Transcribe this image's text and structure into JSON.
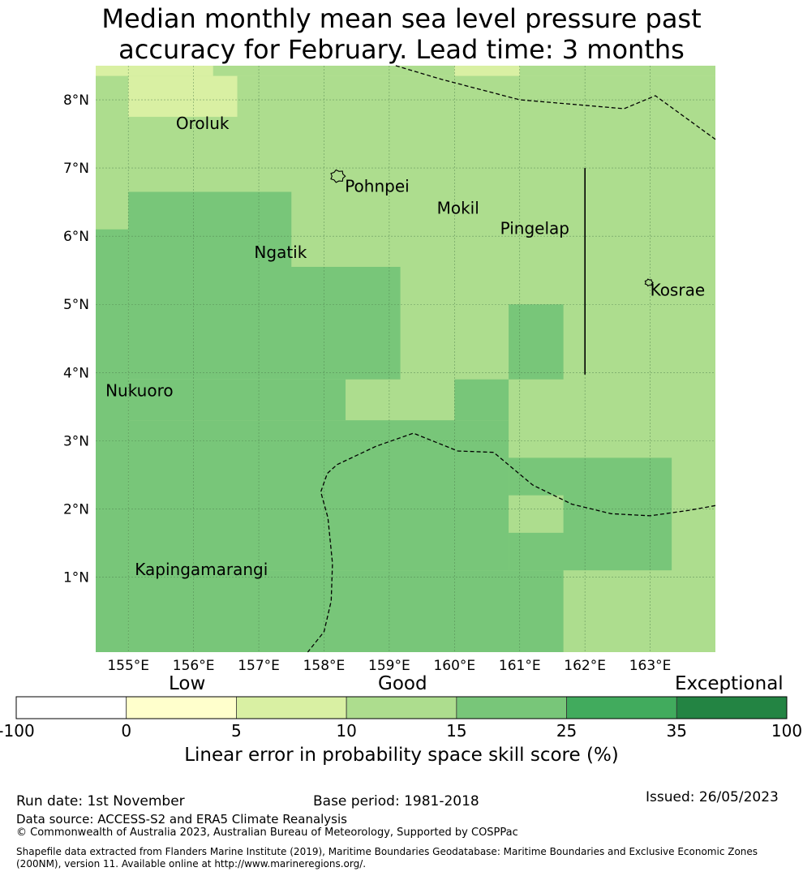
{
  "title_line1": "Median monthly mean sea level pressure past",
  "title_line2": "accuracy for February. Lead time: 3 months",
  "map": {
    "lon_range": [
      154.5,
      164.0
    ],
    "lat_range": [
      -0.1,
      8.5
    ],
    "lon_ticks": [
      155,
      156,
      157,
      158,
      159,
      160,
      161,
      162,
      163
    ],
    "lon_tick_labels": [
      "155°E",
      "156°E",
      "157°E",
      "158°E",
      "159°E",
      "160°E",
      "161°E",
      "162°E",
      "163°E"
    ],
    "lat_ticks": [
      1,
      2,
      3,
      4,
      5,
      6,
      7,
      8
    ],
    "lat_tick_labels": [
      "1°N",
      "2°N",
      "3°N",
      "4°N",
      "5°N",
      "6°N",
      "7°N",
      "8°N"
    ],
    "background_color": "#addd8e",
    "skill_cells": [
      {
        "lon": [
          154.5,
          164.0
        ],
        "lat": [
          8.35,
          8.5
        ],
        "color": "#d9f0a3"
      },
      {
        "lon": [
          156.3,
          160.0
        ],
        "lat": [
          8.35,
          8.5
        ],
        "color": "#addd8e"
      },
      {
        "lon": [
          161.0,
          164.0
        ],
        "lat": [
          8.35,
          8.5
        ],
        "color": "#addd8e"
      },
      {
        "lon": [
          155.0,
          156.67
        ],
        "lat": [
          7.75,
          8.35
        ],
        "color": "#d9f0a3"
      },
      {
        "lon": [
          154.5,
          155.0
        ],
        "lat": [
          -0.1,
          6.1
        ],
        "color": "#78c679"
      },
      {
        "lon": [
          155.0,
          157.5
        ],
        "lat": [
          5.5,
          6.65
        ],
        "color": "#78c679"
      },
      {
        "lon": [
          155.0,
          159.17
        ],
        "lat": [
          3.9,
          5.55
        ],
        "color": "#78c679"
      },
      {
        "lon": [
          155.0,
          158.33
        ],
        "lat": [
          3.3,
          3.9
        ],
        "color": "#78c679"
      },
      {
        "lon": [
          155.0,
          160.83
        ],
        "lat": [
          1.1,
          3.3
        ],
        "color": "#78c679"
      },
      {
        "lon": [
          160.0,
          160.83
        ],
        "lat": [
          3.3,
          3.9
        ],
        "color": "#78c679"
      },
      {
        "lon": [
          160.83,
          161.67
        ],
        "lat": [
          3.9,
          5.0
        ],
        "color": "#78c679"
      },
      {
        "lon": [
          160.83,
          163.33
        ],
        "lat": [
          1.1,
          2.75
        ],
        "color": "#78c679"
      },
      {
        "lon": [
          160.83,
          161.67
        ],
        "lat": [
          1.65,
          2.2
        ],
        "color": "#addd8e"
      },
      {
        "lon": [
          155.0,
          161.67
        ],
        "lat": [
          -0.1,
          1.1
        ],
        "color": "#78c679"
      }
    ],
    "boundary_dashed_1": [
      [
        159.1,
        8.5
      ],
      [
        159.8,
        8.3
      ],
      [
        161.0,
        8.0
      ],
      [
        162.6,
        7.87
      ],
      [
        163.08,
        8.06
      ],
      [
        164.0,
        7.42
      ]
    ],
    "boundary_dashed_2": [
      [
        164.0,
        2.05
      ],
      [
        163.6,
        1.98
      ],
      [
        163.0,
        1.9
      ],
      [
        162.4,
        1.93
      ],
      [
        161.8,
        2.07
      ],
      [
        161.2,
        2.35
      ],
      [
        160.6,
        2.83
      ],
      [
        160.05,
        2.85
      ],
      [
        159.37,
        3.11
      ],
      [
        158.8,
        2.92
      ],
      [
        158.2,
        2.65
      ],
      [
        158.05,
        2.52
      ],
      [
        157.95,
        2.25
      ],
      [
        158.06,
        1.87
      ],
      [
        158.13,
        1.2
      ],
      [
        158.11,
        0.65
      ],
      [
        158.0,
        0.2
      ],
      [
        157.75,
        -0.1
      ]
    ],
    "boundary_solid": [
      [
        162.0,
        7.0
      ],
      [
        162.0,
        3.97
      ]
    ],
    "places": [
      {
        "name": "Oroluk",
        "lon": 155.73,
        "lat": 7.57
      },
      {
        "name": "Pohnpei",
        "lon": 158.32,
        "lat": 6.65
      },
      {
        "name": "Mokil",
        "lon": 159.73,
        "lat": 6.33
      },
      {
        "name": "Pingelap",
        "lon": 160.7,
        "lat": 6.03
      },
      {
        "name": "Ngatik",
        "lon": 156.93,
        "lat": 5.68
      },
      {
        "name": "Kosrae",
        "lon": 163.0,
        "lat": 5.13
      },
      {
        "name": "Nukuoro",
        "lon": 154.65,
        "lat": 3.65
      },
      {
        "name": "Kapingamarangi",
        "lon": 155.1,
        "lat": 1.03
      }
    ],
    "islands": [
      {
        "name": "Pohnpei",
        "lon": 158.21,
        "lat": 6.88,
        "r": 0.11
      },
      {
        "name": "Kosrae",
        "lon": 162.98,
        "lat": 5.32,
        "r": 0.06
      }
    ]
  },
  "colorbar": {
    "category_low": "Low",
    "category_good": "Good",
    "category_exceptional": "Exceptional",
    "tick_labels": [
      "-100",
      "0",
      "5",
      "10",
      "15",
      "25",
      "35",
      "100"
    ],
    "segment_colors": [
      "#ffffff",
      "#ffffcc",
      "#d9f0a3",
      "#addd8e",
      "#78c679",
      "#41ab5d",
      "#238443"
    ],
    "label": "Linear error in probability space skill score (%)"
  },
  "footer": {
    "run_date": "Run date: 1st November",
    "base_period": "Base period: 1981-2018",
    "issued": "Issued: 26/05/2023",
    "data_source": "Data source: ACCESS-S2 and ERA5 Climate Reanalysis",
    "copyright": "© Commonwealth of Australia 2023, Australian Bureau of Meteorology, Supported by COSPPac",
    "shapefile_note": "Shapefile data extracted from Flanders Marine Institute (2019), Maritime Boundaries Geodatabase: Maritime Boundaries and Exclusive Economic Zones (200NM), version 11. Available online at http://www.marineregions.org/."
  }
}
